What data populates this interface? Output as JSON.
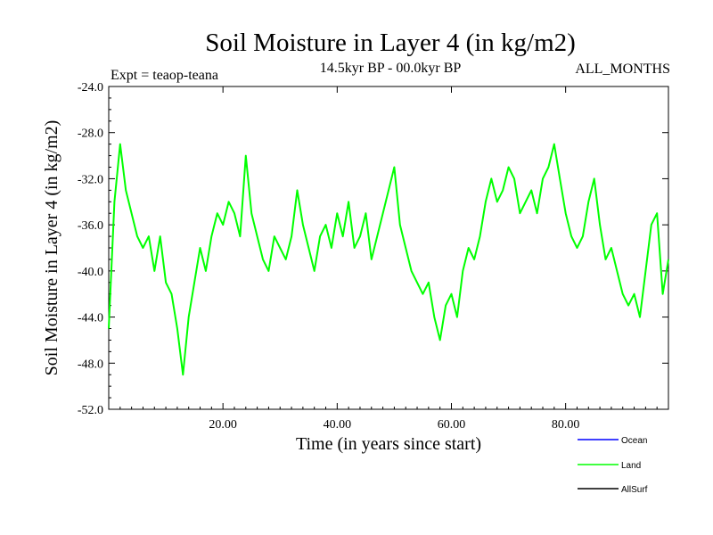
{
  "chart_data": {
    "type": "line",
    "title": "Soil Moisture in Layer 4 (in kg/m2)",
    "subtitle_left": "Expt = teaop-teana",
    "subtitle_center": "14.5kyr BP - 00.0kyr BP",
    "subtitle_right": "ALL_MONTHS",
    "xlabel": "Time (in years since start)",
    "ylabel": "Soil Moisture in Layer 4 (in kg/m2)",
    "xlim": [
      0,
      98
    ],
    "ylim": [
      -52,
      -24
    ],
    "x_ticks": [
      20,
      40,
      60,
      80
    ],
    "x_tick_labels": [
      "20.00",
      "40.00",
      "60.00",
      "80.00"
    ],
    "y_ticks": [
      -24,
      -28,
      -32,
      -36,
      -40,
      -44,
      -48,
      -52
    ],
    "y_tick_labels": [
      "-24.0",
      "-28.0",
      "-32.0",
      "-36.0",
      "-40.0",
      "-44.0",
      "-48.0",
      "-52.0"
    ],
    "legend": [
      {
        "name": "Ocean",
        "color": "#0000ff"
      },
      {
        "name": "Land",
        "color": "#00ff00"
      },
      {
        "name": "AllSurf",
        "color": "#000000"
      }
    ],
    "series": [
      {
        "name": "Land",
        "color": "#00ff00",
        "x": [
          0,
          1,
          2,
          3,
          4,
          5,
          6,
          7,
          8,
          9,
          10,
          11,
          12,
          13,
          14,
          15,
          16,
          17,
          18,
          19,
          20,
          21,
          22,
          23,
          24,
          25,
          26,
          27,
          28,
          29,
          30,
          31,
          32,
          33,
          34,
          35,
          36,
          37,
          38,
          39,
          40,
          41,
          42,
          43,
          44,
          45,
          46,
          47,
          48,
          49,
          50,
          51,
          52,
          53,
          54,
          55,
          56,
          57,
          58,
          59,
          60,
          61,
          62,
          63,
          64,
          65,
          66,
          67,
          68,
          69,
          70,
          71,
          72,
          73,
          74,
          75,
          76,
          77,
          78,
          79,
          80,
          81,
          82,
          83,
          84,
          85,
          86,
          87,
          88,
          89,
          90,
          91,
          92,
          93,
          94,
          95,
          96,
          97,
          98
        ],
        "values": [
          -45,
          -34,
          -29,
          -33,
          -35,
          -37,
          -38,
          -37,
          -40,
          -37,
          -41,
          -42,
          -45,
          -49,
          -44,
          -41,
          -38,
          -40,
          -37,
          -35,
          -36,
          -34,
          -35,
          -37,
          -30,
          -35,
          -37,
          -39,
          -40,
          -37,
          -38,
          -39,
          -37,
          -33,
          -36,
          -38,
          -40,
          -37,
          -36,
          -38,
          -35,
          -37,
          -34,
          -38,
          -37,
          -35,
          -39,
          -37,
          -35,
          -33,
          -31,
          -36,
          -38,
          -40,
          -41,
          -42,
          -41,
          -44,
          -46,
          -43,
          -42,
          -44,
          -40,
          -38,
          -39,
          -37,
          -34,
          -32,
          -34,
          -33,
          -31,
          -32,
          -35,
          -34,
          -33,
          -35,
          -32,
          -31,
          -29,
          -32,
          -35,
          -37,
          -38,
          -37,
          -34,
          -32,
          -36,
          -39,
          -38,
          -40,
          -42,
          -43,
          -42,
          -44,
          -40,
          -36,
          -35,
          -42,
          -39
        ]
      }
    ]
  }
}
